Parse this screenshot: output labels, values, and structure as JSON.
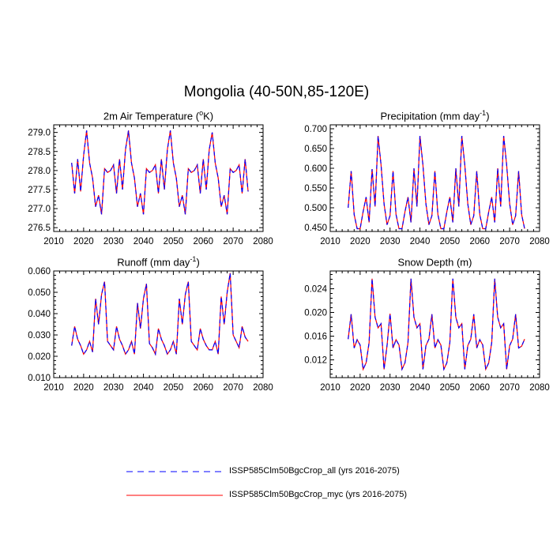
{
  "title": "Mongolia (40-50N,85-120E)",
  "legend": {
    "entries": [
      {
        "label": "ISSP585Clm50BgcCrop_all (yrs 2016-2075)",
        "color": "#0000ff",
        "dash": true
      },
      {
        "label": "ISSP585Clm50BgcCrop_myc (yrs 2016-2075)",
        "color": "#ff0000",
        "dash": false
      }
    ]
  },
  "chart_data": [
    {
      "type": "line",
      "title_main": "2m Air Temperature (",
      "title_sup": "o",
      "title_end": "K)",
      "xlim": [
        2010,
        2080
      ],
      "xticks": [
        2010,
        2020,
        2030,
        2040,
        2050,
        2060,
        2070,
        2080
      ],
      "xtick_labels": [
        "2010",
        "2020",
        "2030",
        "2040",
        "2050",
        "2060",
        "2070",
        "2080"
      ],
      "ylim": [
        276.4,
        279.2
      ],
      "yticks": [
        276.5,
        277.0,
        277.5,
        278.0,
        278.5,
        279.0
      ],
      "ytick_labels": [
        "276.5",
        "277.0",
        "277.5",
        "278.0",
        "278.5",
        "279.0"
      ],
      "x_start": 2016,
      "series": [
        {
          "values": [
            278.2,
            277.4,
            278.3,
            277.45,
            278.4,
            279.05,
            278.2,
            277.8,
            277.05,
            277.35,
            276.85,
            278.05,
            277.95,
            278.0,
            278.15,
            277.4,
            278.3,
            277.5,
            278.55,
            279.05,
            278.2,
            277.8,
            277.05,
            277.4,
            276.85,
            278.05,
            277.95,
            278.0,
            278.15,
            277.4,
            278.3,
            277.5,
            278.55,
            279.05,
            278.2,
            277.8,
            277.05,
            277.35,
            276.85,
            278.05,
            277.95,
            278.0,
            278.15,
            277.4,
            278.3,
            277.5,
            278.55,
            279.0,
            278.2,
            277.8,
            277.05,
            277.35,
            276.85,
            278.05,
            277.95,
            278.0,
            278.15,
            277.4,
            278.3,
            277.45
          ]
        }
      ]
    },
    {
      "type": "line",
      "title_main": "Precipitation (mm day",
      "title_sup": "-1",
      "title_end": ")",
      "xlim": [
        2010,
        2080
      ],
      "xticks": [
        2010,
        2020,
        2030,
        2040,
        2050,
        2060,
        2070,
        2080
      ],
      "xtick_labels": [
        "2010",
        "2020",
        "2030",
        "2040",
        "2050",
        "2060",
        "2070",
        "2080"
      ],
      "ylim": [
        0.44,
        0.71
      ],
      "yticks": [
        0.45,
        0.5,
        0.55,
        0.6,
        0.65,
        0.7
      ],
      "ytick_labels": [
        "0.450",
        "0.500",
        "0.550",
        "0.600",
        "0.650",
        "0.700"
      ],
      "x_start": 2016,
      "series": [
        {
          "values": [
            0.5,
            0.593,
            0.483,
            0.447,
            0.447,
            0.49,
            0.527,
            0.463,
            0.598,
            0.503,
            0.682,
            0.608,
            0.51,
            0.457,
            0.48,
            0.593,
            0.483,
            0.447,
            0.447,
            0.49,
            0.527,
            0.463,
            0.6,
            0.503,
            0.682,
            0.608,
            0.51,
            0.457,
            0.48,
            0.593,
            0.483,
            0.447,
            0.447,
            0.49,
            0.527,
            0.463,
            0.6,
            0.503,
            0.682,
            0.608,
            0.51,
            0.457,
            0.48,
            0.593,
            0.483,
            0.447,
            0.447,
            0.49,
            0.527,
            0.463,
            0.6,
            0.503,
            0.682,
            0.608,
            0.51,
            0.457,
            0.48,
            0.593,
            0.483,
            0.447
          ]
        }
      ]
    },
    {
      "type": "line",
      "title_main": "Runoff (mm day",
      "title_sup": "-1",
      "title_end": ")",
      "xlim": [
        2010,
        2080
      ],
      "xticks": [
        2010,
        2020,
        2030,
        2040,
        2050,
        2060,
        2070,
        2080
      ],
      "xtick_labels": [
        "2010",
        "2020",
        "2030",
        "2040",
        "2050",
        "2060",
        "2070",
        "2080"
      ],
      "ylim": [
        0.01,
        0.06
      ],
      "yticks": [
        0.01,
        0.02,
        0.03,
        0.04,
        0.05,
        0.06
      ],
      "ytick_labels": [
        "0.010",
        "0.020",
        "0.030",
        "0.040",
        "0.050",
        "0.060"
      ],
      "x_start": 2016,
      "series": [
        {
          "values": [
            0.025,
            0.034,
            0.028,
            0.025,
            0.021,
            0.023,
            0.027,
            0.022,
            0.047,
            0.035,
            0.049,
            0.055,
            0.027,
            0.025,
            0.023,
            0.034,
            0.028,
            0.025,
            0.021,
            0.023,
            0.027,
            0.021,
            0.045,
            0.033,
            0.047,
            0.054,
            0.026,
            0.024,
            0.021,
            0.033,
            0.028,
            0.025,
            0.021,
            0.023,
            0.027,
            0.021,
            0.047,
            0.035,
            0.049,
            0.055,
            0.027,
            0.025,
            0.023,
            0.033,
            0.028,
            0.025,
            0.023,
            0.023,
            0.027,
            0.021,
            0.048,
            0.035,
            0.05,
            0.059,
            0.03,
            0.027,
            0.024,
            0.034,
            0.029,
            0.027
          ]
        }
      ]
    },
    {
      "type": "line",
      "title_main": "Snow Depth (m)",
      "title_sup": "",
      "title_end": "",
      "xlim": [
        2010,
        2080
      ],
      "xticks": [
        2010,
        2020,
        2030,
        2040,
        2050,
        2060,
        2070,
        2080
      ],
      "xtick_labels": [
        "2010",
        "2020",
        "2030",
        "2040",
        "2050",
        "2060",
        "2070",
        "2080"
      ],
      "ylim": [
        0.009,
        0.027
      ],
      "yticks": [
        0.012,
        0.016,
        0.02,
        0.024
      ],
      "ytick_labels": [
        "0.012",
        "0.016",
        "0.020",
        "0.024"
      ],
      "x_start": 2016,
      "series": [
        {
          "values": [
            0.0155,
            0.0197,
            0.014,
            0.0154,
            0.0145,
            0.0104,
            0.0115,
            0.0149,
            0.0257,
            0.0192,
            0.0174,
            0.0181,
            0.0104,
            0.0144,
            0.0198,
            0.014,
            0.0154,
            0.0145,
            0.0104,
            0.0115,
            0.0149,
            0.0257,
            0.0192,
            0.0174,
            0.0181,
            0.0104,
            0.0144,
            0.0155,
            0.0197,
            0.014,
            0.0154,
            0.0145,
            0.0104,
            0.0115,
            0.0149,
            0.0257,
            0.0192,
            0.0174,
            0.0181,
            0.0104,
            0.0144,
            0.0155,
            0.0197,
            0.014,
            0.0154,
            0.0145,
            0.0104,
            0.0115,
            0.0149,
            0.0257,
            0.0192,
            0.0174,
            0.0181,
            0.0104,
            0.0144,
            0.0155,
            0.0197,
            0.014,
            0.0143,
            0.0155
          ]
        }
      ]
    }
  ]
}
